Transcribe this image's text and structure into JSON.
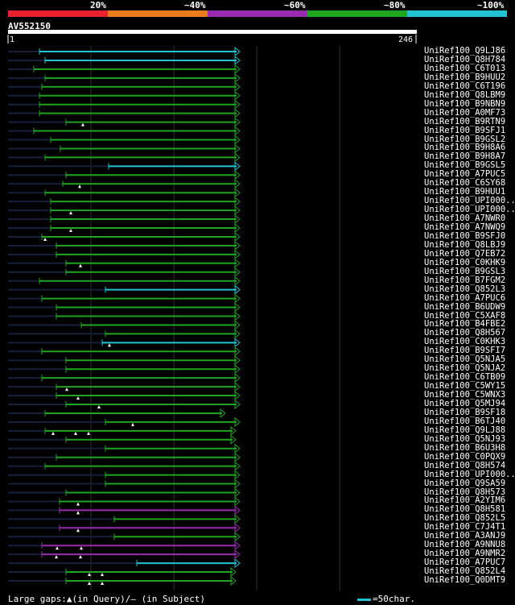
{
  "legend": [
    {
      "label": "20%",
      "color": "#e8202f"
    },
    {
      "label": "~40%",
      "color": "#e87d1c"
    },
    {
      "label": "~60%",
      "color": "#9a2bb0"
    },
    {
      "label": "~80%",
      "color": "#1fa51f"
    },
    {
      "label": "~100%",
      "color": "#22c4d4"
    }
  ],
  "chart_data": {
    "type": "alignment",
    "title": "AV552150",
    "query_start": "1",
    "query_end": "246",
    "query_length": 246,
    "hits": [
      {
        "label": "UniRef100_Q9LJ86",
        "start": 49,
        "end": 298,
        "color": "#22c4d4",
        "arrow": true,
        "gaps": []
      },
      {
        "label": "UniRef100_Q8H784",
        "start": 56,
        "end": 298,
        "color": "#22c4d4",
        "arrow": true,
        "gaps": []
      },
      {
        "label": "UniRef100_C6T013",
        "start": 42,
        "end": 298,
        "color": "#1fa51f",
        "arrow": true,
        "gaps": []
      },
      {
        "label": "UniRef100_B9HUU2",
        "start": 56,
        "end": 298,
        "color": "#1fa51f",
        "arrow": true,
        "gaps": []
      },
      {
        "label": "UniRef100_C6T196",
        "start": 52,
        "end": 298,
        "color": "#1fa51f",
        "arrow": true,
        "gaps": []
      },
      {
        "label": "UniRef100_Q8LBM9",
        "start": 49,
        "end": 298,
        "color": "#1fa51f",
        "arrow": true,
        "gaps": []
      },
      {
        "label": "UniRef100_B9NBN9",
        "start": 49,
        "end": 298,
        "color": "#1fa51f",
        "arrow": true,
        "gaps": []
      },
      {
        "label": "UniRef100_A0MF73",
        "start": 49,
        "end": 298,
        "color": "#1fa51f",
        "arrow": true,
        "gaps": []
      },
      {
        "label": "UniRef100_B9RTN9",
        "start": 82,
        "end": 298,
        "color": "#1fa51f",
        "arrow": true,
        "gaps": [
          103
        ]
      },
      {
        "label": "UniRef100_B9SFJ1",
        "start": 42,
        "end": 298,
        "color": "#1fa51f",
        "arrow": true,
        "gaps": []
      },
      {
        "label": "UniRef100_B9GSL2",
        "start": 63,
        "end": 298,
        "color": "#1fa51f",
        "arrow": true,
        "gaps": []
      },
      {
        "label": "UniRef100_B9H8A6",
        "start": 75,
        "end": 298,
        "color": "#1fa51f",
        "arrow": true,
        "gaps": []
      },
      {
        "label": "UniRef100_B9H8A7",
        "start": 56,
        "end": 298,
        "color": "#1fa51f",
        "arrow": true,
        "gaps": []
      },
      {
        "label": "UniRef100_B9GSL5",
        "start": 135,
        "end": 298,
        "color": "#22c4d4",
        "arrow": true,
        "gaps": []
      },
      {
        "label": "UniRef100_A7PUC5",
        "start": 82,
        "end": 298,
        "color": "#1fa51f",
        "arrow": true,
        "gaps": []
      },
      {
        "label": "UniRef100_C6SY68",
        "start": 78,
        "end": 298,
        "color": "#1fa51f",
        "arrow": true,
        "gaps": [
          99
        ]
      },
      {
        "label": "UniRef100_B9HUU1",
        "start": 56,
        "end": 298,
        "color": "#1fa51f",
        "arrow": true,
        "gaps": []
      },
      {
        "label": "UniRef100_UPI000..",
        "start": 63,
        "end": 298,
        "color": "#1fa51f",
        "arrow": true,
        "gaps": []
      },
      {
        "label": "UniRef100_UPI000..",
        "start": 63,
        "end": 298,
        "color": "#1fa51f",
        "arrow": true,
        "gaps": [
          88
        ]
      },
      {
        "label": "UniRef100_A7NWR0",
        "start": 63,
        "end": 298,
        "color": "#1fa51f",
        "arrow": true,
        "gaps": []
      },
      {
        "label": "UniRef100_A7NWQ9",
        "start": 63,
        "end": 298,
        "color": "#1fa51f",
        "arrow": true,
        "gaps": [
          88
        ]
      },
      {
        "label": "UniRef100_B9SFJ0",
        "start": 52,
        "end": 298,
        "color": "#1fa51f",
        "arrow": true,
        "gaps": [
          56
        ]
      },
      {
        "label": "UniRef100_Q8LBJ9",
        "start": 70,
        "end": 298,
        "color": "#1fa51f",
        "arrow": true,
        "gaps": []
      },
      {
        "label": "UniRef100_Q7EB72",
        "start": 70,
        "end": 298,
        "color": "#1fa51f",
        "arrow": true,
        "gaps": []
      },
      {
        "label": "UniRef100_C0KHK9",
        "start": 82,
        "end": 298,
        "color": "#1fa51f",
        "arrow": true,
        "gaps": [
          100
        ]
      },
      {
        "label": "UniRef100_B9GSL3",
        "start": 82,
        "end": 298,
        "color": "#1fa51f",
        "arrow": true,
        "gaps": []
      },
      {
        "label": "UniRef100_B7FGM2",
        "start": 49,
        "end": 298,
        "color": "#1fa51f",
        "arrow": true,
        "gaps": []
      },
      {
        "label": "UniRef100_Q852L3",
        "start": 131,
        "end": 298,
        "color": "#22c4d4",
        "arrow": true,
        "gaps": []
      },
      {
        "label": "UniRef100_A7PUC6",
        "start": 52,
        "end": 298,
        "color": "#1fa51f",
        "arrow": true,
        "gaps": []
      },
      {
        "label": "UniRef100_B6UDW9",
        "start": 70,
        "end": 298,
        "color": "#1fa51f",
        "arrow": true,
        "gaps": []
      },
      {
        "label": "UniRef100_C5XAF8",
        "start": 70,
        "end": 298,
        "color": "#1fa51f",
        "arrow": true,
        "gaps": []
      },
      {
        "label": "UniRef100_B4FBE2",
        "start": 101,
        "end": 298,
        "color": "#1fa51f",
        "arrow": true,
        "gaps": []
      },
      {
        "label": "UniRef100_Q8H567",
        "start": 131,
        "end": 298,
        "color": "#1fa51f",
        "arrow": true,
        "gaps": []
      },
      {
        "label": "UniRef100_C0KHK3",
        "start": 127,
        "end": 298,
        "color": "#22c4d4",
        "arrow": true,
        "gaps": [
          136
        ]
      },
      {
        "label": "UniRef100_B9SFI7",
        "start": 52,
        "end": 298,
        "color": "#1fa51f",
        "arrow": true,
        "gaps": []
      },
      {
        "label": "UniRef100_Q5NJA5",
        "start": 82,
        "end": 298,
        "color": "#1fa51f",
        "arrow": true,
        "gaps": []
      },
      {
        "label": "UniRef100_Q5NJA2",
        "start": 82,
        "end": 298,
        "color": "#1fa51f",
        "arrow": true,
        "gaps": []
      },
      {
        "label": "UniRef100_C6TB09",
        "start": 52,
        "end": 298,
        "color": "#1fa51f",
        "arrow": true,
        "gaps": []
      },
      {
        "label": "UniRef100_C5WY15",
        "start": 70,
        "end": 298,
        "color": "#1fa51f",
        "arrow": true,
        "gaps": [
          83
        ]
      },
      {
        "label": "UniRef100_C5WNX3",
        "start": 70,
        "end": 298,
        "color": "#1fa51f",
        "arrow": true,
        "gaps": [
          97
        ]
      },
      {
        "label": "UniRef100_Q5MJ94",
        "start": 82,
        "end": 298,
        "color": "#1fa51f",
        "arrow": true,
        "gaps": [
          123
        ]
      },
      {
        "label": "UniRef100_B9SF18",
        "start": 56,
        "end": 280,
        "color": "#1fa51f",
        "arrow": true,
        "gaps": []
      },
      {
        "label": "UniRef100_B6TJ40",
        "start": 131,
        "end": 298,
        "color": "#1fa51f",
        "arrow": true,
        "gaps": [
          165
        ]
      },
      {
        "label": "UniRef100_Q9LJ88",
        "start": 56,
        "end": 293,
        "color": "#1fa51f",
        "arrow": true,
        "gaps": [
          66,
          94,
          110
        ]
      },
      {
        "label": "UniRef100_Q5NJ93",
        "start": 82,
        "end": 293,
        "color": "#1fa51f",
        "arrow": true,
        "gaps": []
      },
      {
        "label": "UniRef100_B6U3H8",
        "start": 131,
        "end": 298,
        "color": "#1fa51f",
        "arrow": true,
        "gaps": []
      },
      {
        "label": "UniRef100_C0PQX9",
        "start": 70,
        "end": 298,
        "color": "#1fa51f",
        "arrow": true,
        "gaps": []
      },
      {
        "label": "UniRef100_Q8H574",
        "start": 56,
        "end": 298,
        "color": "#1fa51f",
        "arrow": true,
        "gaps": []
      },
      {
        "label": "UniRef100_UPI000..",
        "start": 131,
        "end": 298,
        "color": "#1fa51f",
        "arrow": true,
        "gaps": []
      },
      {
        "label": "UniRef100_Q9SA59",
        "start": 131,
        "end": 298,
        "color": "#1fa51f",
        "arrow": true,
        "gaps": []
      },
      {
        "label": "UniRef100_Q8H573",
        "start": 82,
        "end": 298,
        "color": "#1fa51f",
        "arrow": true,
        "gaps": []
      },
      {
        "label": "UniRef100_A2YIM6",
        "start": 74,
        "end": 298,
        "color": "#1fa51f",
        "arrow": true,
        "gaps": [
          97
        ]
      },
      {
        "label": "UniRef100_Q8H581",
        "start": 74,
        "end": 298,
        "color": "#9a2bb0",
        "arrow": true,
        "gaps": [
          97
        ]
      },
      {
        "label": "UniRef100_Q852L5",
        "start": 142,
        "end": 298,
        "color": "#1fa51f",
        "arrow": true,
        "gaps": []
      },
      {
        "label": "UniRef100_C7J4T1",
        "start": 74,
        "end": 298,
        "color": "#9a2bb0",
        "arrow": true,
        "gaps": [
          97
        ]
      },
      {
        "label": "UniRef100_A3ANJ9",
        "start": 142,
        "end": 298,
        "color": "#1fa51f",
        "arrow": true,
        "gaps": []
      },
      {
        "label": "UniRef100_A9NNU8",
        "start": 52,
        "end": 298,
        "color": "#9a2bb0",
        "arrow": true,
        "gaps": [
          71,
          101
        ]
      },
      {
        "label": "UniRef100_A9NMR2",
        "start": 52,
        "end": 298,
        "color": "#9a2bb0",
        "arrow": true,
        "gaps": [
          70,
          100
        ]
      },
      {
        "label": "UniRef100_A7PUC7",
        "start": 170,
        "end": 298,
        "color": "#22c4d4",
        "arrow": true,
        "gaps": []
      },
      {
        "label": "UniRef100_Q852L4",
        "start": 82,
        "end": 293,
        "color": "#1fa51f",
        "arrow": true,
        "gaps": [
          111,
          127
        ]
      },
      {
        "label": "UniRef100_Q0DMT9",
        "start": 82,
        "end": 293,
        "color": "#1fa51f",
        "arrow": true,
        "gaps": [
          111,
          127
        ]
      }
    ]
  },
  "footer": {
    "gaps_text": "Large gaps:▲(in Query)/– (in Subject)",
    "scale_text": "=50char."
  }
}
